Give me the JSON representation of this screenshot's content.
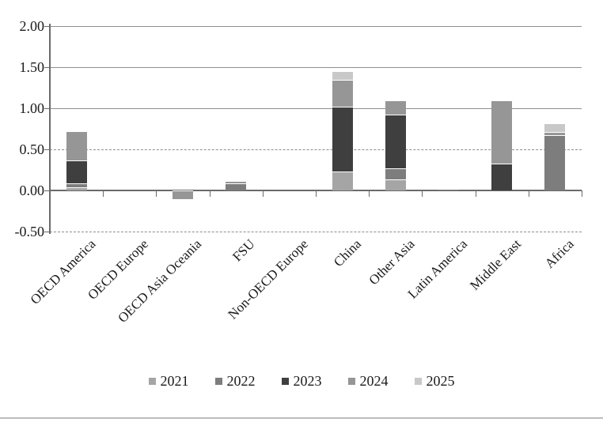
{
  "chart_data": {
    "type": "bar",
    "stacked": true,
    "title": "",
    "xlabel": "",
    "ylabel": "",
    "grid": true,
    "legend_position": "bottom",
    "ylim": [
      -0.5,
      2.0
    ],
    "yticks": [
      {
        "value": 2.0,
        "label": "2.00",
        "style": "solid"
      },
      {
        "value": 1.5,
        "label": "1.50",
        "style": "solid"
      },
      {
        "value": 1.0,
        "label": "1.00",
        "style": "solid"
      },
      {
        "value": 0.5,
        "label": "0.50",
        "style": "dashed"
      },
      {
        "value": 0.0,
        "label": "0.00",
        "style": "axis"
      },
      {
        "value": -0.5,
        "label": "-0.50",
        "style": "dashed"
      }
    ],
    "categories": [
      "OECD America",
      "OECD Europe",
      "OECD Asia Oceania",
      "FSU",
      "Non-OECD Europe",
      "China",
      "Other Asia",
      "Latin America",
      "Middle East",
      "Africa"
    ],
    "series": [
      {
        "name": "2021",
        "color": "#a5a5a5",
        "values": [
          0.04,
          0,
          0,
          0,
          0,
          0.23,
          0.13,
          0,
          0,
          0
        ]
      },
      {
        "name": "2022",
        "color": "#7d7d7d",
        "values": [
          0.05,
          0,
          0,
          0.09,
          0,
          0,
          0.14,
          0.02,
          0,
          0.67
        ]
      },
      {
        "name": "2023",
        "color": "#3f3f3f",
        "values": [
          0.28,
          0,
          0,
          0,
          0,
          0.79,
          0.65,
          0,
          0.33,
          0
        ]
      },
      {
        "name": "2024",
        "color": "#969696",
        "values": [
          0.35,
          0,
          -0.11,
          0.03,
          0,
          0.33,
          0.18,
          0,
          0.77,
          0.04
        ]
      },
      {
        "name": "2025",
        "color": "#c8c8c8",
        "values": [
          0,
          0,
          0,
          0,
          0,
          0.1,
          0,
          0,
          0,
          0.11
        ]
      }
    ]
  },
  "legend": {
    "items": [
      "2021",
      "2022",
      "2023",
      "2024",
      "2025"
    ]
  }
}
